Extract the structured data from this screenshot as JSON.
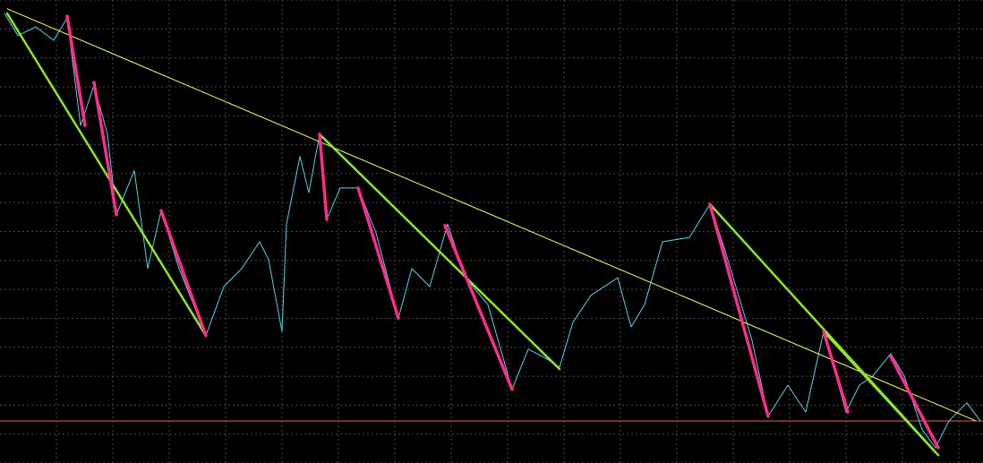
{
  "chart_data": {
    "type": "line",
    "background": "#000000",
    "grid": true,
    "grid_color": "#4a4a4a",
    "xlim": [
      0,
      1098
    ],
    "ylim": [
      0,
      100
    ],
    "xticks": [
      63,
      126,
      189,
      252,
      315,
      378,
      441,
      504,
      567,
      630,
      693,
      756,
      819,
      882,
      945,
      1008,
      1071
    ],
    "yticks": [
      0,
      6.25,
      12.5,
      18.75,
      25,
      31.25,
      37.5,
      43.75,
      50,
      56.25,
      62.5,
      68.75,
      75,
      81.25,
      87.5,
      93.75,
      100
    ],
    "hline": {
      "value": 9.1,
      "color": "#e06060"
    },
    "series": [
      {
        "color": "#5fd3e3",
        "width": 1,
        "x": [
          5,
          20,
          40,
          60,
          75,
          90,
          105,
          120,
          130,
          150,
          165,
          180,
          200,
          230,
          250,
          270,
          290,
          300,
          315,
          320,
          335,
          345,
          357,
          365,
          380,
          400,
          420,
          445,
          460,
          480,
          500,
          520,
          545,
          572,
          590,
          610,
          625,
          640,
          660,
          690,
          705,
          720,
          740,
          770,
          793,
          810,
          840,
          858,
          880,
          900,
          920,
          945,
          960,
          975,
          995,
          1010,
          1030,
          1045,
          1060,
          1080,
          1095
        ],
        "values": [
          97.1,
          92.3,
          94.2,
          91.3,
          96.1,
          72.9,
          81.6,
          71.0,
          53.6,
          63.2,
          42.0,
          54.5,
          42.0,
          27.5,
          38.1,
          42.0,
          47.8,
          43.9,
          28.4,
          51.6,
          66.2,
          58.4,
          71.0,
          52.6,
          59.4,
          59.4,
          49.7,
          31.3,
          42.0,
          38.1,
          51.6,
          40.0,
          34.2,
          15.9,
          24.6,
          22.6,
          20.7,
          30.4,
          36.2,
          40.0,
          29.4,
          34.2,
          47.8,
          48.7,
          55.9,
          45.8,
          26.5,
          10.1,
          16.8,
          11.0,
          28.4,
          11.0,
          16.8,
          18.8,
          23.6,
          18.8,
          7.2,
          3.3,
          9.1,
          13.0,
          9.1
        ]
      },
      {
        "color": "#ffff66",
        "width": 1,
        "x": [
          8,
          1090
        ],
        "values": [
          98.1,
          9.1
        ]
      },
      {
        "color": "#8ee62a",
        "width": 2.5,
        "x": [
          8,
          230,
          290,
          357,
          625,
          700,
          793,
          1048,
          1000,
          920,
          1045
        ],
        "values": [
          97.1,
          27.5,
          null,
          71.0,
          20.3,
          null,
          55.9,
          1.7,
          null,
          28.4,
          2.3
        ]
      },
      {
        "color": "#ff2d8a",
        "width": 3.5,
        "x": [
          75,
          95,
          100,
          105,
          130,
          150,
          180,
          230,
          300,
          357,
          365,
          380,
          400,
          445,
          470,
          497,
          572,
          700,
          793,
          858,
          900,
          920,
          947,
          970,
          995,
          1048
        ],
        "values": [
          96.5,
          72.9,
          null,
          82.2,
          53.6,
          null,
          54.5,
          27.5,
          null,
          71.0,
          52.6,
          null,
          59.4,
          31.3,
          null,
          51.3,
          15.9,
          null,
          55.9,
          10.1,
          null,
          28.4,
          11.0,
          null,
          23.0,
          3.3
        ]
      }
    ]
  }
}
